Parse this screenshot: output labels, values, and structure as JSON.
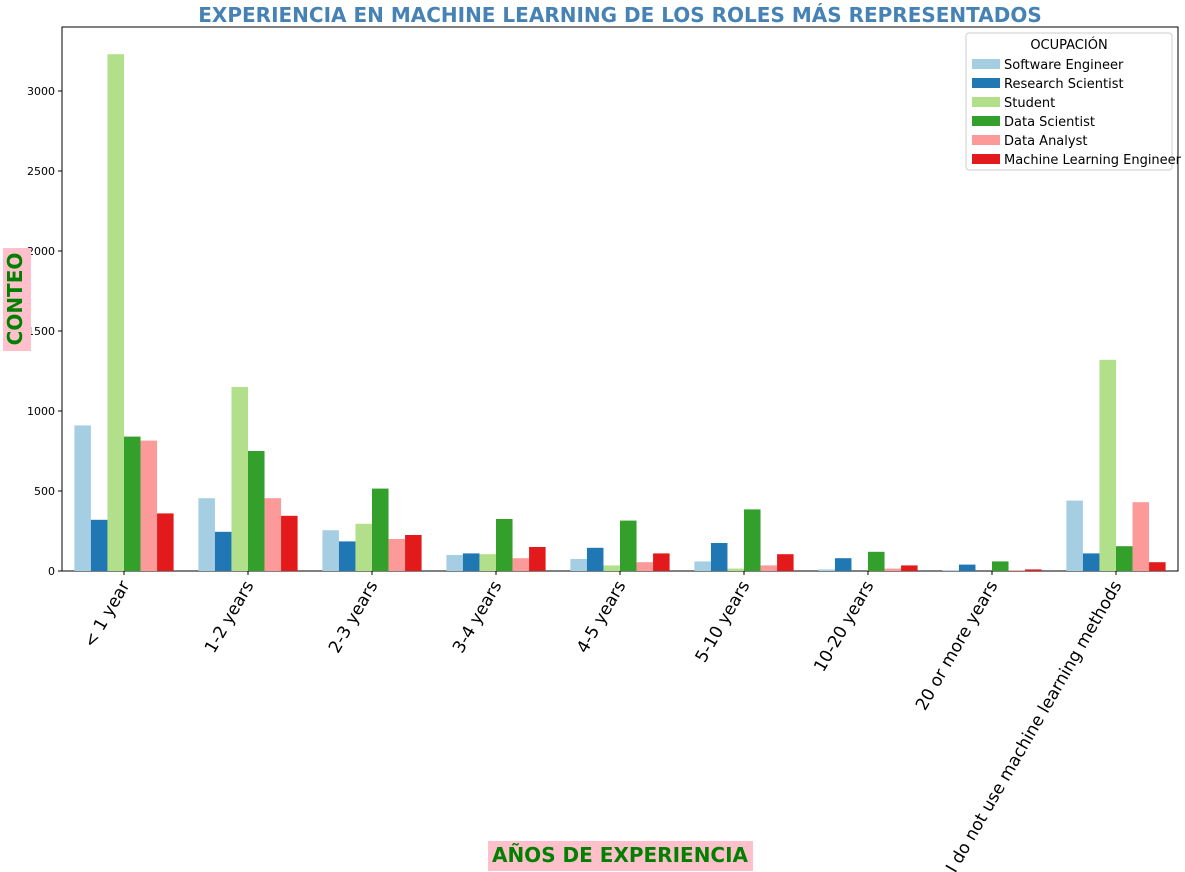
{
  "chart_data": {
    "type": "bar",
    "title": "EXPERIENCIA EN MACHINE LEARNING DE LOS ROLES MÁS REPRESENTADOS",
    "xlabel": "AÑOS DE EXPERIENCIA",
    "ylabel": "CONTEO",
    "categories": [
      "< 1 year",
      "1-2 years",
      "2-3 years",
      "3-4 years",
      "4-5 years",
      "5-10 years",
      "10-20 years",
      "20 or more years",
      "I do not use machine learning methods"
    ],
    "yticks": [
      0,
      500,
      1000,
      1500,
      2000,
      2500,
      3000
    ],
    "ylim": [
      0,
      3400
    ],
    "grid": false,
    "legend": {
      "title": "OCUPACIÓN",
      "position": "top-right"
    },
    "series": [
      {
        "name": "Software Engineer",
        "color": "#a6cee3",
        "values": [
          910,
          455,
          255,
          100,
          75,
          60,
          10,
          5,
          440
        ]
      },
      {
        "name": "Research Scientist",
        "color": "#1f78b4",
        "values": [
          320,
          245,
          185,
          110,
          145,
          175,
          80,
          40,
          110
        ]
      },
      {
        "name": "Student",
        "color": "#b2df8a",
        "values": [
          3230,
          1150,
          295,
          105,
          35,
          15,
          0,
          0,
          1320
        ]
      },
      {
        "name": "Data Scientist",
        "color": "#33a02c",
        "values": [
          840,
          750,
          515,
          325,
          315,
          385,
          120,
          60,
          155
        ]
      },
      {
        "name": "Data Analyst",
        "color": "#fb9a99",
        "values": [
          815,
          455,
          200,
          80,
          55,
          35,
          15,
          5,
          430
        ]
      },
      {
        "name": "Machine Learning Engineer",
        "color": "#e31a1c",
        "values": [
          360,
          345,
          225,
          150,
          110,
          105,
          35,
          10,
          55
        ]
      }
    ],
    "colors": {
      "title": "#4682b4",
      "axis_label": "#008000",
      "axis_label_bg": "#ffc0cb"
    }
  }
}
